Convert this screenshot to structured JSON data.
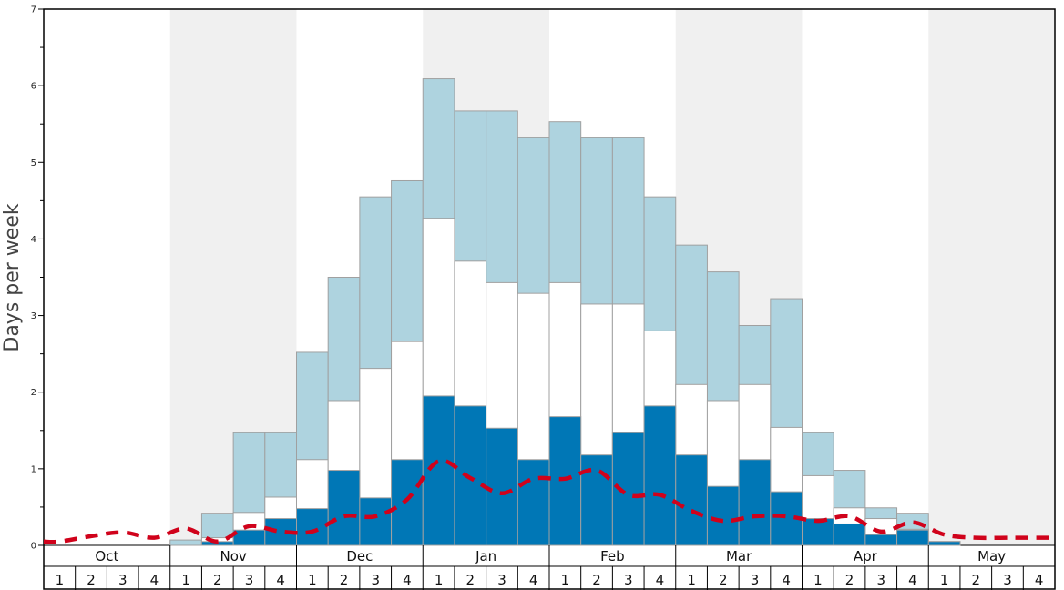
{
  "chart_data": {
    "type": "bar",
    "ylabel": "Days per week",
    "ylim": [
      0,
      7
    ],
    "yticks": [
      0,
      1,
      2,
      3,
      4,
      5,
      6,
      7
    ],
    "months": [
      "Oct",
      "Nov",
      "Dec",
      "Jan",
      "Feb",
      "Mar",
      "Apr",
      "May"
    ],
    "weeks_per_month": [
      "1",
      "2",
      "3",
      "4"
    ],
    "colors": {
      "shade": "#f0f0f0",
      "series_bottom": "#0077b6",
      "series_middle": "#ffffff",
      "series_top": "#aed3df",
      "bar_edge": "#a0a0a0",
      "line": "#d0021b",
      "axis": "#000000"
    },
    "series": [
      {
        "key": "bottom",
        "values": [
          0,
          0,
          0,
          0,
          0,
          0.05,
          0.2,
          0.35,
          0.48,
          0.98,
          0.62,
          1.12,
          1.95,
          1.82,
          1.53,
          1.12,
          1.68,
          1.18,
          1.47,
          1.82,
          1.18,
          0.77,
          1.12,
          0.7,
          0.35,
          0.28,
          0.14,
          0.2,
          0.05,
          0,
          0,
          0
        ]
      },
      {
        "key": "middle",
        "values": [
          0,
          0,
          0,
          0,
          0,
          0.1,
          0.43,
          0.63,
          1.12,
          1.89,
          2.31,
          2.66,
          4.27,
          3.71,
          3.43,
          3.29,
          3.43,
          3.15,
          3.15,
          2.8,
          2.1,
          1.89,
          2.1,
          1.54,
          0.91,
          0.49,
          0.35,
          0.21,
          0.05,
          0,
          0,
          0
        ]
      },
      {
        "key": "top",
        "values": [
          0,
          0,
          0,
          0,
          0.07,
          0.42,
          1.47,
          1.47,
          2.52,
          3.5,
          4.55,
          4.76,
          6.09,
          5.67,
          5.67,
          5.32,
          5.53,
          5.32,
          5.32,
          4.55,
          3.92,
          3.57,
          2.87,
          3.22,
          1.47,
          0.98,
          0.49,
          0.42,
          0.05,
          0,
          0,
          0
        ]
      },
      {
        "key": "line",
        "style": "dashed",
        "values": [
          0.05,
          0.12,
          0.17,
          0.1,
          0.22,
          0.05,
          0.25,
          0.18,
          0.18,
          0.38,
          0.38,
          0.6,
          1.1,
          0.88,
          0.68,
          0.87,
          0.87,
          0.98,
          0.66,
          0.66,
          0.45,
          0.32,
          0.38,
          0.38,
          0.32,
          0.38,
          0.18,
          0.3,
          0.14,
          0.1,
          0.1,
          0.1
        ]
      }
    ]
  }
}
